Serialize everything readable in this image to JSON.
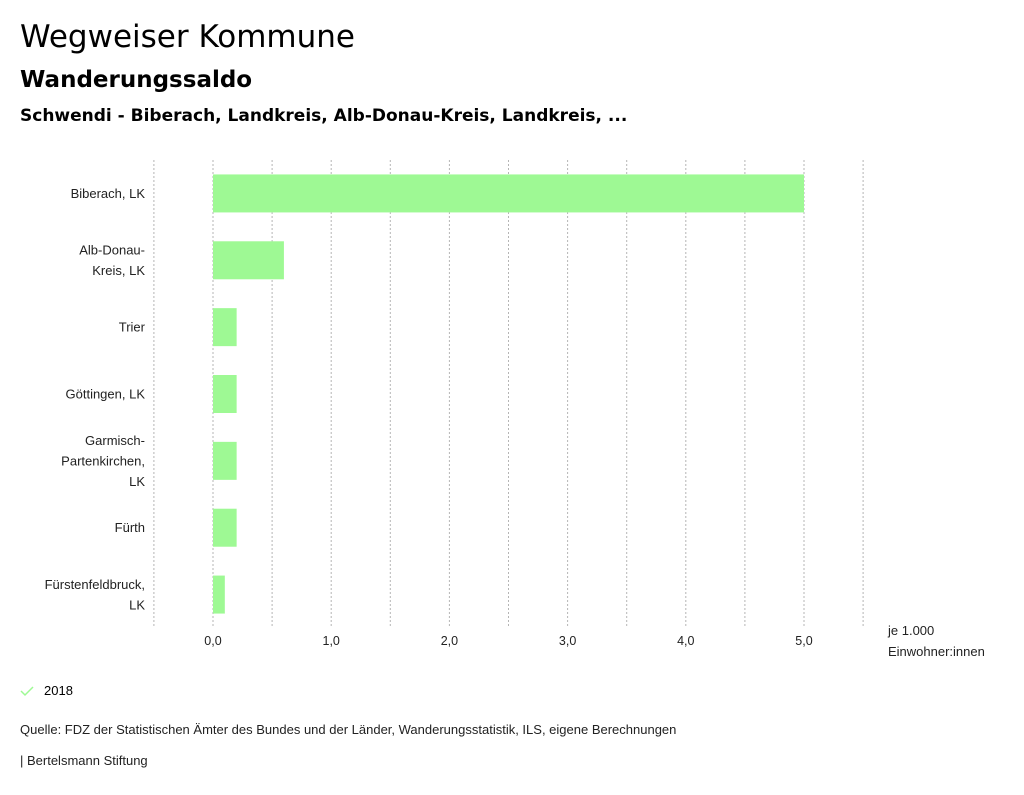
{
  "header": {
    "title": "Wegweiser Kommune",
    "subtitle": "Wanderungssaldo",
    "region": "Schwendi - Biberach, Landkreis, Alb-Donau-Kreis, Landkreis, ..."
  },
  "chart_data": {
    "type": "bar",
    "orientation": "horizontal",
    "title": "Wanderungssaldo",
    "categories": [
      [
        "Biberach, LK"
      ],
      [
        "Alb-Donau-",
        "Kreis, LK"
      ],
      [
        "Trier"
      ],
      [
        "Göttingen, LK"
      ],
      [
        "Garmisch-",
        "Partenkirchen,",
        "LK"
      ],
      [
        "Fürth"
      ],
      [
        "Fürstenfeldbruck,",
        "LK"
      ]
    ],
    "series": [
      {
        "name": "2018",
        "color": "#9ef994",
        "values": [
          5.0,
          0.6,
          0.2,
          0.2,
          0.2,
          0.2,
          0.1
        ]
      }
    ],
    "xlabel": "je 1.000 Einwohner:innen",
    "xlabel_lines": [
      "je 1.000",
      "Einwohner:innen"
    ],
    "xlim": [
      -0.5,
      5.5
    ],
    "xticks": [
      0,
      1,
      2,
      3,
      4,
      5
    ],
    "xtick_labels": [
      "0,0",
      "1,0",
      "2,0",
      "3,0",
      "4,0",
      "5,0"
    ],
    "gridlines": [
      -0.5,
      0,
      0.5,
      1,
      1.5,
      2,
      2.5,
      3,
      3.5,
      4,
      4.5,
      5,
      5.5
    ],
    "grid": true,
    "legend_position": "bottom-left"
  },
  "legend": {
    "label": "2018",
    "color": "#9ef994"
  },
  "footer": {
    "source": "Quelle: FDZ der Statistischen Ämter des Bundes und der Länder, Wanderungsstatistik, ILS, eigene Berechnungen",
    "brand": "| Bertelsmann Stiftung"
  }
}
